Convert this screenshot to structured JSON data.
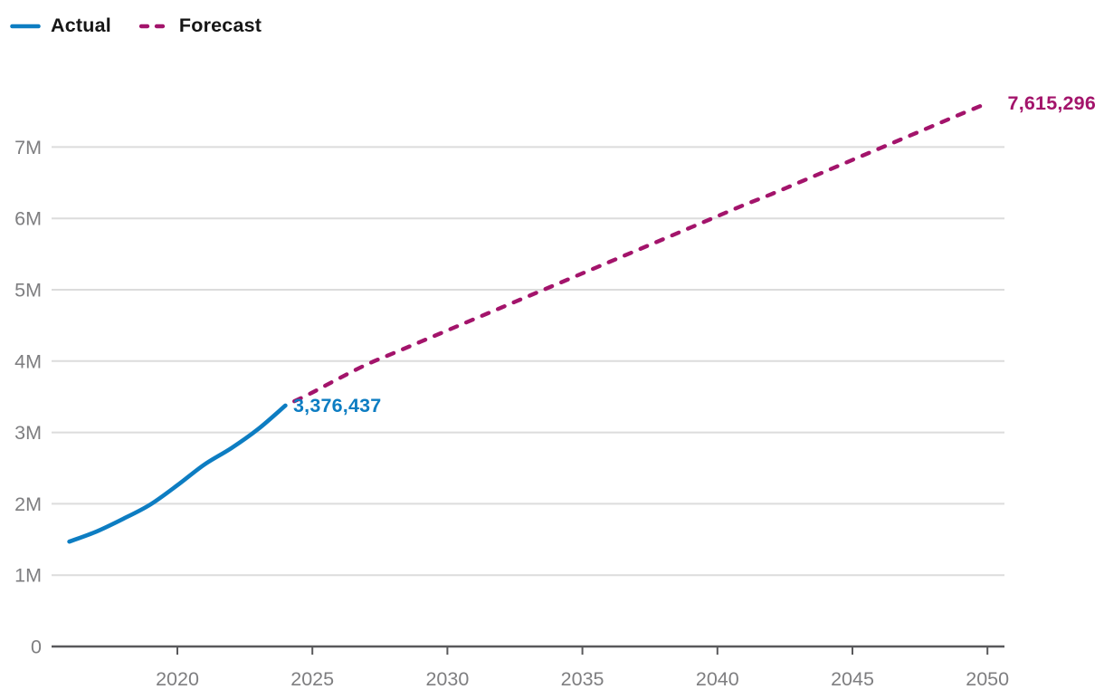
{
  "legend": {
    "items": [
      {
        "label": "Actual",
        "style": "solid",
        "color": "#0d7dc2",
        "icon": "solid-line-swatch"
      },
      {
        "label": "Forecast",
        "style": "dashed",
        "color": "#a3146b",
        "icon": "dashed-line-swatch"
      }
    ]
  },
  "chart_data": {
    "type": "line",
    "title": "",
    "xlabel": "",
    "ylabel": "",
    "grid": "horizontal",
    "legend_position": "top-left",
    "xlim": [
      2015.3,
      2050.7
    ],
    "ylim": [
      0,
      7800000
    ],
    "x_ticks": [
      {
        "v": 2020,
        "label": "2020"
      },
      {
        "v": 2025,
        "label": "2025"
      },
      {
        "v": 2030,
        "label": "2030"
      },
      {
        "v": 2035,
        "label": "2035"
      },
      {
        "v": 2040,
        "label": "2040"
      },
      {
        "v": 2045,
        "label": "2045"
      },
      {
        "v": 2050,
        "label": "2050"
      }
    ],
    "y_ticks": [
      {
        "v": 0,
        "label": "0"
      },
      {
        "v": 1000000,
        "label": "1M"
      },
      {
        "v": 2000000,
        "label": "2M"
      },
      {
        "v": 3000000,
        "label": "3M"
      },
      {
        "v": 4000000,
        "label": "4M"
      },
      {
        "v": 5000000,
        "label": "5M"
      },
      {
        "v": 6000000,
        "label": "6M"
      },
      {
        "v": 7000000,
        "label": "7M"
      }
    ],
    "series": [
      {
        "name": "Actual",
        "color": "#0d7dc2",
        "style": "solid",
        "end_label": "3,376,437",
        "x": [
          2016,
          2017,
          2018,
          2019,
          2020,
          2021,
          2022,
          2023,
          2024
        ],
        "values": [
          1470000,
          1610000,
          1790000,
          1990000,
          2260000,
          2550000,
          2780000,
          3050000,
          3376437
        ]
      },
      {
        "name": "Forecast",
        "color": "#a3146b",
        "style": "dashed",
        "end_label": "7,615,296",
        "x": [
          2024,
          2025,
          2026,
          2027,
          2028,
          2029,
          2030,
          2031,
          2032,
          2033,
          2034,
          2035,
          2036,
          2037,
          2038,
          2039,
          2040,
          2041,
          2042,
          2043,
          2044,
          2045,
          2046,
          2047,
          2048,
          2049,
          2050
        ],
        "values": [
          3376437,
          3560000,
          3760000,
          3950000,
          4110000,
          4270000,
          4430000,
          4590000,
          4750000,
          4910000,
          5070000,
          5230000,
          5390000,
          5550000,
          5710000,
          5870000,
          6030000,
          6190000,
          6340000,
          6500000,
          6660000,
          6820000,
          6980000,
          7140000,
          7300000,
          7460000,
          7615296
        ]
      }
    ]
  }
}
